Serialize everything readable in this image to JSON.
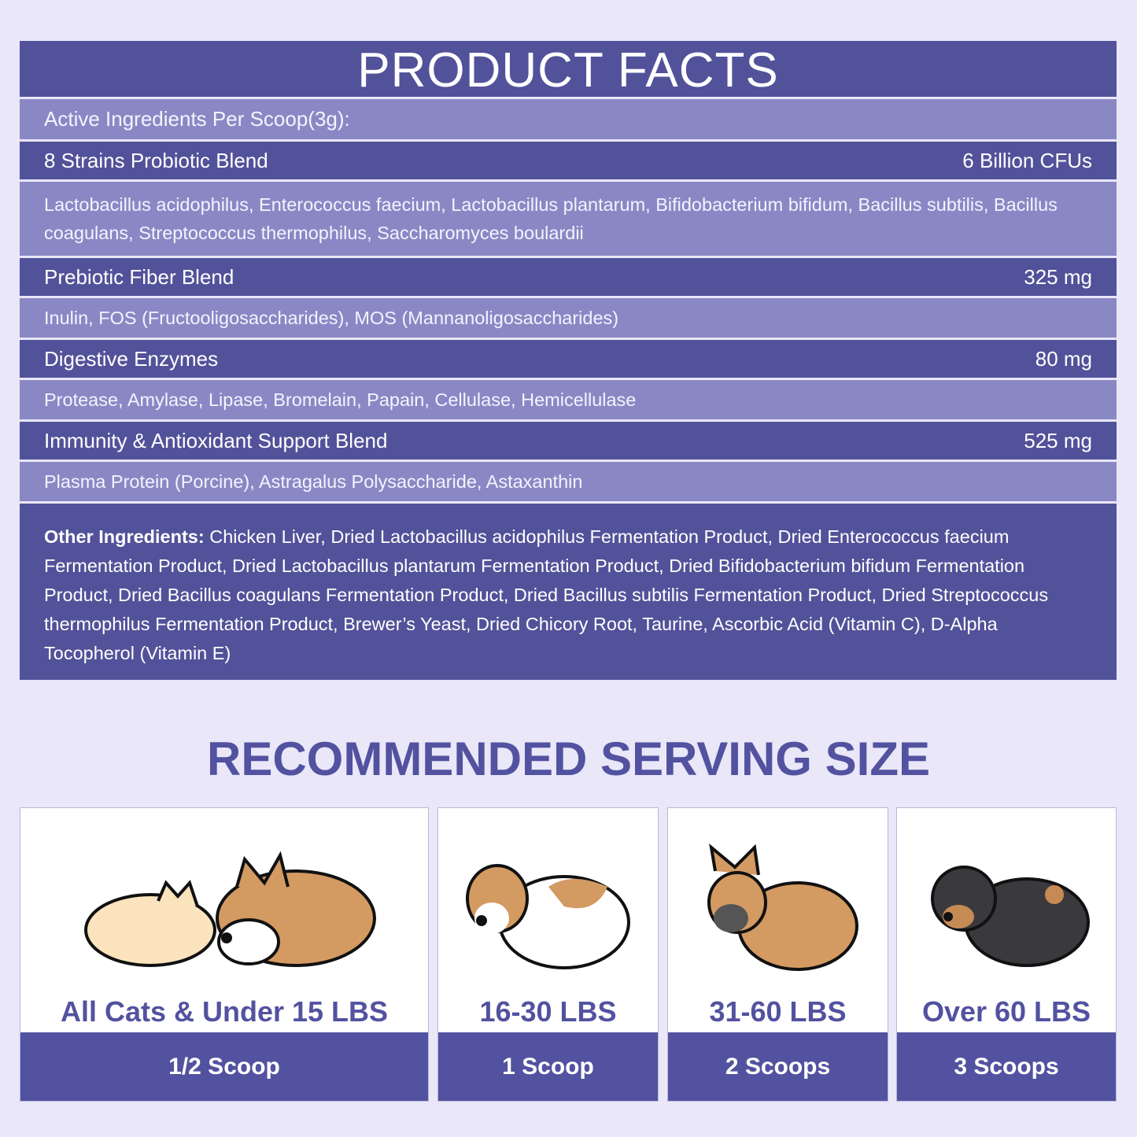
{
  "facts": {
    "title": "PRODUCT FACTS",
    "active_header": "Active Ingredients Per Scoop(3g):",
    "rows": [
      {
        "name": "8 Strains Probiotic Blend",
        "amount": "6 Billion CFUs",
        "details": "Lactobacillus acidophilus, Enterococcus faecium, Lactobacillus plantarum, Bifidobacterium bifidum, Bacillus subtilis, Bacillus coagulans, Streptococcus thermophilus, Saccharomyces boulardii"
      },
      {
        "name": "Prebiotic Fiber Blend",
        "amount": "325 mg",
        "details": "Inulin, FOS (Fructooligosaccharides), MOS (Mannanoligosaccharides)"
      },
      {
        "name": "Digestive Enzymes",
        "amount": "80 mg",
        "details": "Protease, Amylase, Lipase, Bromelain, Papain, Cellulase, Hemicellulase"
      },
      {
        "name": "Immunity & Antioxidant Support Blend",
        "amount": "525 mg",
        "details": "Plasma Protein (Porcine), Astragalus Polysaccharide, Astaxanthin"
      }
    ],
    "other_label": "Other Ingredients:",
    "other_text": " Chicken Liver, Dried Lactobacillus acidophilus Fermentation Product, Dried Enterococcus faecium Fermentation Product, Dried Lactobacillus plantarum Fermentation Product, Dried Bifidobacterium bifidum Fermentation Product, Dried Bacillus coagulans Fermentation Product, Dried Bacillus subtilis Fermentation Product, Dried Streptococcus thermophilus Fermentation Product, Brewer’s Yeast, Dried Chicory Root, Taurine, Ascorbic Acid (Vitamin C), D-Alpha Tocopherol (Vitamin E)"
  },
  "serving": {
    "title": "RECOMMENDED SERVING SIZE",
    "cards": [
      {
        "label": "All Cats & Under 15 LBS",
        "amount": "1/2 Scoop",
        "icon": "cat-and-corgi-illustration"
      },
      {
        "label": "16-30 LBS",
        "amount": "1 Scoop",
        "icon": "beagle-illustration"
      },
      {
        "label": "31-60 LBS",
        "amount": "2 Scoops",
        "icon": "french-bulldog-illustration"
      },
      {
        "label": "Over 60 LBS",
        "amount": "3 Scoops",
        "icon": "rottweiler-illustration"
      }
    ]
  },
  "colors": {
    "dark": "#52529a",
    "light": "#8a88c4",
    "background": "#e9e7f8"
  }
}
